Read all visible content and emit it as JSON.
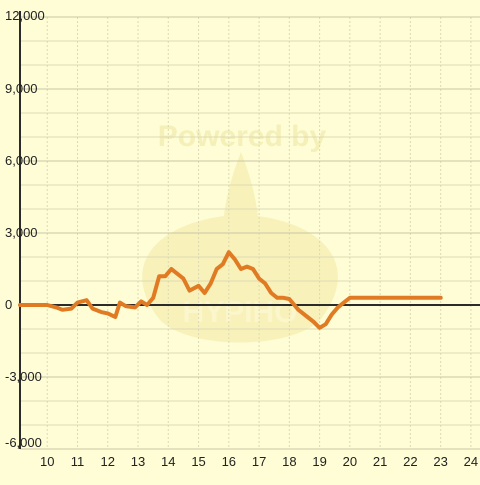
{
  "watermark": {
    "top_text": "Powered by",
    "bottom_text": "HYPIHO"
  },
  "colors": {
    "background": "#FEFDD6",
    "grid_major": "#C9C7A4",
    "grid_minor": "#DCDAB4",
    "axis": "#2B2B2B",
    "series": "#E07B24",
    "watermark": "#F5EEB0"
  },
  "chart_data": {
    "type": "line",
    "title": "",
    "xlabel": "",
    "ylabel": "",
    "xlim": [
      9.1,
      24.3
    ],
    "ylim": [
      -6000,
      12000
    ],
    "x_ticks": [
      10,
      11,
      12,
      13,
      14,
      15,
      16,
      17,
      18,
      19,
      20,
      21,
      22,
      23,
      24
    ],
    "x_tick_labels": [
      "10",
      "11",
      "12",
      "13",
      "14",
      "15",
      "16",
      "17",
      "18",
      "19",
      "20",
      "21",
      "22",
      "23",
      "24"
    ],
    "y_ticks": [
      12000,
      9000,
      6000,
      3000,
      0,
      -3000,
      -6000
    ],
    "y_tick_labels": [
      "12,000",
      "9,000",
      "6,000",
      "3,000",
      "0",
      "-3,000",
      "-6,000"
    ],
    "grid": true,
    "series": [
      {
        "x": [
          9.1,
          10.0,
          10.3,
          10.5,
          10.8,
          11.0,
          11.3,
          11.5,
          11.8,
          12.0,
          12.25,
          12.4,
          12.6,
          12.9,
          13.1,
          13.3,
          13.5,
          13.7,
          13.9,
          14.1,
          14.3,
          14.5,
          14.7,
          15.0,
          15.2,
          15.4,
          15.6,
          15.8,
          16.0,
          16.2,
          16.4,
          16.6,
          16.8,
          17.0,
          17.2,
          17.4,
          17.6,
          17.8,
          18.0,
          18.3,
          18.6,
          18.8,
          19.0,
          19.2,
          19.4,
          19.6,
          19.8,
          20.0,
          20.2,
          20.5,
          20.7,
          20.9,
          21.1,
          21.3,
          21.5,
          21.7,
          22.0,
          22.3,
          22.6,
          23.0
        ],
        "y": [
          0,
          0,
          -100,
          -200,
          -150,
          100,
          200,
          -150,
          -300,
          -350,
          -500,
          100,
          -50,
          -100,
          150,
          0,
          300,
          1200,
          1200,
          1500,
          1300,
          1100,
          600,
          800,
          500,
          900,
          1500,
          1700,
          2200,
          1900,
          1500,
          1600,
          1500,
          1100,
          900,
          500,
          300,
          300,
          250,
          -200,
          -500,
          -700,
          -950,
          -800,
          -400,
          -100,
          100,
          300,
          300,
          300,
          300,
          300,
          300,
          300,
          300,
          300,
          300,
          300,
          300,
          300
        ]
      }
    ]
  }
}
